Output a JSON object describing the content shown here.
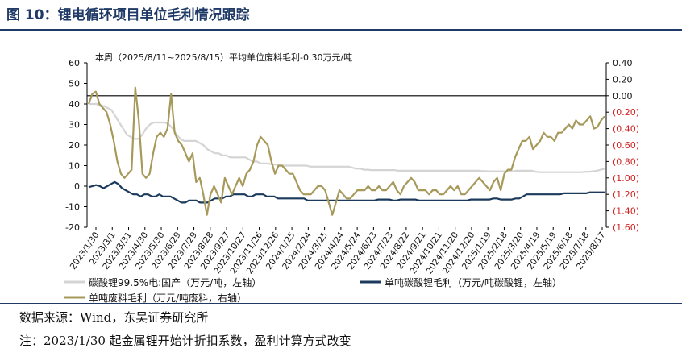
{
  "figure": {
    "title": "图 10：锂电循环项目单位毛利情况跟踪",
    "source": "数据来源：Wind，东吴证券研究所",
    "note": "注：2023/1/30 起金属锂开始计折扣系数，盈利计算方式改变"
  },
  "colors": {
    "title": "#1f3a66",
    "carbonate_price": "#d4d4d4",
    "carbonate_margin": "#1b3a5c",
    "waste_margin": "#a7995a",
    "negative_axis": "#d02020",
    "axis": "#000000"
  },
  "chart_data": {
    "type": "line",
    "annotation": "本周（2025/8/11~2025/8/15）平均单位废料毛利-0.30万元/吨",
    "x_tick_labels": [
      "2023/1/30",
      "2023/3/1",
      "2023/3/31",
      "2023/4/30",
      "2023/5/30",
      "2023/6/29",
      "2023/7/29",
      "2023/8/28",
      "2023/9/27",
      "2023/10/27",
      "2023/11/26",
      "2023/12/26",
      "2024/1/25",
      "2024/2/24",
      "2024/3/25",
      "2024/4/24",
      "2024/5/24",
      "2024/6/23",
      "2024/7/23",
      "2024/8/22",
      "2024/9/21",
      "2024/10/21",
      "2024/11/20",
      "2024/12/20",
      "2025/1/19",
      "2025/2/18",
      "2025/3/20",
      "2025/4/19",
      "2025/5/19",
      "2025/6/18",
      "2025/7/18",
      "2025/8/17"
    ],
    "y_left": {
      "min": -20,
      "max": 60,
      "ticks": [
        60,
        50,
        40,
        30,
        20,
        10,
        0,
        -10,
        -20
      ]
    },
    "y_right": {
      "min": -1.6,
      "max": 0.4,
      "ticks": [
        "0.40",
        "0.20",
        "0.00",
        "(0.20)",
        "(0.40)",
        "(0.60)",
        "(0.80)",
        "(1.00)",
        "(1.20)",
        "(1.40)",
        "(1.60)"
      ]
    },
    "series": [
      {
        "name": "碳酸锂99.5%电:国产（万元/吨，左轴）",
        "axis": "left",
        "values": [
          40,
          40,
          40,
          39,
          39,
          38,
          37,
          34,
          31,
          28,
          25,
          24,
          23,
          23,
          25,
          28,
          30,
          31,
          31,
          31,
          31,
          30,
          28,
          25,
          23,
          22,
          22,
          22,
          22,
          21,
          20,
          18,
          17,
          16,
          16,
          15,
          15,
          14,
          14,
          14,
          14,
          14,
          13,
          12,
          12,
          11,
          11,
          11,
          10.5,
          10.5,
          10,
          10,
          10,
          10,
          10,
          10,
          10,
          10,
          9.5,
          9.5,
          9.5,
          9.5,
          9.5,
          9.5,
          9.5,
          9.5,
          9.5,
          9.5,
          9.5,
          9,
          8.5,
          8.5,
          8,
          8,
          7.8,
          7.8,
          7.8,
          7.8,
          7.8,
          7.8,
          7.8,
          7.5,
          7.5,
          7.5,
          7.5,
          7.5,
          7.5,
          7.5,
          7.5,
          7.5,
          7.5,
          7.5,
          7.5,
          7.5,
          7.5,
          7.5,
          7.5,
          7.5,
          7.5,
          7.5,
          7.5,
          7.5,
          7.5,
          7.3,
          7.3,
          7.2,
          7.2,
          7.2,
          7.2,
          7.2,
          7.2,
          7.2,
          7.5,
          7.5,
          7.5,
          7.5,
          7.5,
          7,
          6.8,
          6.8,
          6.8,
          6.8,
          6.8,
          6.8,
          6.8,
          6.8,
          6.8,
          6.8,
          6.8,
          6.8,
          7,
          7,
          7.2,
          7.5,
          8,
          8.5
        ]
      },
      {
        "name": "单吨碳酸锂毛利（万元/吨碳酸锂，左轴）",
        "axis": "left",
        "values": [
          -0.5,
          0,
          0.5,
          0,
          -1,
          0,
          1,
          2,
          1,
          -1,
          -2,
          -3,
          -4,
          -4,
          -5,
          -4,
          -4,
          -5,
          -5,
          -4,
          -5,
          -5,
          -5,
          -6,
          -7,
          -8,
          -8,
          -7,
          -7,
          -7,
          -8,
          -8,
          -8,
          -7,
          -6,
          -6,
          -6,
          -5,
          -5,
          -4,
          -4,
          -4,
          -4,
          -5,
          -5,
          -4,
          -4,
          -4,
          -5,
          -5,
          -5,
          -6,
          -6,
          -6,
          -6,
          -6,
          -6,
          -6,
          -6,
          -7,
          -7,
          -7,
          -7,
          -7,
          -7,
          -7,
          -7,
          -7,
          -7,
          -7,
          -7,
          -7,
          -7,
          -7,
          -7,
          -7,
          -7,
          -7,
          -6.5,
          -6.5,
          -6.5,
          -6.5,
          -7,
          -7,
          -6.5,
          -6.5,
          -6.5,
          -6.5,
          -6.5,
          -7,
          -7,
          -7,
          -7,
          -7,
          -7,
          -7,
          -7,
          -7,
          -7,
          -7,
          -7,
          -7,
          -7,
          -6.5,
          -6.5,
          -6.5,
          -6.5,
          -6.5,
          -6.5,
          -6,
          -6,
          -6.5,
          -6.5,
          -6.5,
          -6.5,
          -6,
          -6,
          -5,
          -4,
          -4,
          -4,
          -4,
          -4,
          -4,
          -4,
          -4,
          -4,
          -4,
          -3.5,
          -3.5,
          -3.5,
          -3.5,
          -3.5,
          -3.5,
          -3.5,
          -3,
          -3,
          -3,
          -3,
          -3
        ]
      },
      {
        "name": "单吨废料毛利（万元/吨废料，右轴）",
        "axis": "right",
        "values": [
          -0.1,
          0.02,
          0.05,
          -0.1,
          -0.15,
          -0.2,
          -0.35,
          -0.55,
          -0.8,
          -0.95,
          -1.0,
          -0.95,
          -0.9,
          0.1,
          -0.3,
          -0.95,
          -1.0,
          -0.95,
          -0.7,
          -0.5,
          -0.45,
          -0.5,
          -0.4,
          0.02,
          -0.45,
          -0.55,
          -0.6,
          -0.7,
          -0.8,
          -0.7,
          -1.05,
          -1.0,
          -1.2,
          -1.45,
          -1.2,
          -1.1,
          -1.2,
          -1.3,
          -1.0,
          -1.1,
          -1.2,
          -1.1,
          -1.0,
          -1.1,
          -0.95,
          -0.9,
          -0.8,
          -0.6,
          -0.5,
          -0.55,
          -0.6,
          -0.8,
          -0.95,
          -0.85,
          -0.85,
          -0.9,
          -0.95,
          -0.95,
          -1.05,
          -1.15,
          -1.2,
          -1.2,
          -1.2,
          -1.15,
          -1.1,
          -1.1,
          -1.15,
          -1.3,
          -1.45,
          -1.3,
          -1.15,
          -1.2,
          -1.25,
          -1.25,
          -1.2,
          -1.15,
          -1.15,
          -1.15,
          -1.1,
          -1.15,
          -1.15,
          -1.1,
          -1.15,
          -1.15,
          -1.1,
          -1.05,
          -1.15,
          -1.2,
          -1.1,
          -1.05,
          -1.0,
          -1.05,
          -1.15,
          -1.15,
          -1.15,
          -1.2,
          -1.15,
          -1.15,
          -1.2,
          -1.2,
          -1.15,
          -1.1,
          -1.15,
          -1.1,
          -1.2,
          -1.2,
          -1.15,
          -1.1,
          -1.05,
          -1.0,
          -1.05,
          -1.1,
          -1.15,
          -1.05,
          -1.0,
          -1.15,
          -0.95,
          -0.9,
          -0.9,
          -0.75,
          -0.65,
          -0.55,
          -0.55,
          -0.5,
          -0.65,
          -0.6,
          -0.55,
          -0.45,
          -0.5,
          -0.5,
          -0.55,
          -0.45,
          -0.45,
          -0.4,
          -0.35,
          -0.4,
          -0.3,
          -0.35,
          -0.35,
          -0.3,
          -0.25,
          -0.4,
          -0.38,
          -0.3,
          -0.25
        ]
      }
    ]
  }
}
